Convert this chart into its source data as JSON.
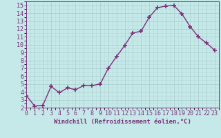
{
  "x": [
    0,
    1,
    2,
    3,
    4,
    5,
    6,
    7,
    8,
    9,
    10,
    11,
    12,
    13,
    14,
    15,
    16,
    17,
    18,
    19,
    20,
    21,
    22,
    23
  ],
  "y": [
    3.5,
    2.2,
    2.3,
    4.7,
    3.9,
    4.5,
    4.3,
    4.8,
    4.8,
    5.0,
    7.0,
    8.5,
    9.9,
    11.5,
    11.7,
    13.5,
    14.7,
    14.9,
    15.0,
    13.9,
    12.3,
    11.0,
    10.2,
    9.3
  ],
  "line_color": "#7b2f7b",
  "marker": "+",
  "marker_size": 4,
  "marker_lw": 1.2,
  "bg_color": "#c5e8e8",
  "grid_color": "#b0d0d0",
  "xlabel": "Windchill (Refroidissement éolien,°C)",
  "xlim": [
    0,
    23
  ],
  "ylim": [
    2,
    15
  ],
  "yticks": [
    2,
    3,
    4,
    5,
    6,
    7,
    8,
    9,
    10,
    11,
    12,
    13,
    14,
    15
  ],
  "xticks": [
    0,
    1,
    2,
    3,
    4,
    5,
    6,
    7,
    8,
    9,
    10,
    11,
    12,
    13,
    14,
    15,
    16,
    17,
    18,
    19,
    20,
    21,
    22,
    23
  ],
  "tick_color": "#7b2f7b",
  "label_color": "#7b2f7b",
  "label_fontsize": 6.5,
  "tick_fontsize": 6.0,
  "line_width": 1.0
}
